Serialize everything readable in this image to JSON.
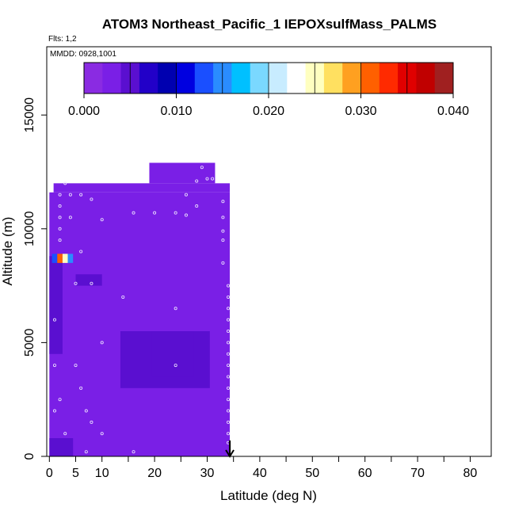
{
  "chart_data": {
    "type": "heatmap",
    "title": "ATOM3 Northeast_Pacific_1 IEPOXsulfMass_PALMS",
    "flights_label": "Flts: 1,2",
    "date_label": "MMDD: 0928,1001",
    "xlabel": "Latitude (deg N)",
    "ylabel": "Altitude (m)",
    "xlim": [
      -0.5,
      84
    ],
    "ylim": [
      0,
      18000
    ],
    "x_ticks": [
      0,
      5,
      10,
      20,
      30,
      40,
      50,
      60,
      70,
      80
    ],
    "y_ticks": [
      0,
      5000,
      10000,
      15000
    ],
    "colorbar": {
      "range": [
        0,
        0.04
      ],
      "tick_values": [
        0,
        0.01,
        0.02,
        0.03,
        0.04
      ],
      "tick_labels": [
        "0.000",
        "0.010",
        "0.020",
        "0.030",
        "0.040"
      ],
      "colors": [
        "#8a2be2",
        "#7a1fe6",
        "#5a0fd0",
        "#2200c8",
        "#0000b0",
        "#0000e0",
        "#1a4fff",
        "#2a8cff",
        "#00c0ff",
        "#7ad8ff",
        "#c8ecff",
        "#ffffff",
        "#ffffc0",
        "#ffe060",
        "#ffa020",
        "#ff6000",
        "#ff2a00",
        "#e00000",
        "#c00000",
        "#a02020"
      ]
    },
    "cells": [
      {
        "x0": 0,
        "x1": 34.3,
        "y0": 0,
        "y1": 11600,
        "value": 0.002
      },
      {
        "x0": 0.8,
        "x1": 34.3,
        "y0": 11600,
        "y1": 12000,
        "value": 0.002
      },
      {
        "x0": 19,
        "x1": 31.5,
        "y0": 12000,
        "y1": 12900,
        "value": 0.002
      },
      {
        "x0": 0,
        "x1": 4.5,
        "y0": 0,
        "y1": 800,
        "value": 0.004
      },
      {
        "x0": 13.5,
        "x1": 30.5,
        "y0": 3000,
        "y1": 5500,
        "value": 0.004
      },
      {
        "x0": 19.5,
        "x1": 27.5,
        "y0": 3500,
        "y1": 5500,
        "value": 0.005
      },
      {
        "x0": 0,
        "x1": 2.5,
        "y0": 4500,
        "y1": 8800,
        "value": 0.004
      },
      {
        "x0": 5,
        "x1": 10,
        "y0": 7500,
        "y1": 8000,
        "value": 0.004
      },
      {
        "x0": 0.5,
        "x1": 1.5,
        "y0": 8500,
        "y1": 8900,
        "value": 0.012
      },
      {
        "x0": 1.5,
        "x1": 2.5,
        "y0": 8500,
        "y1": 8900,
        "value": 0.03
      },
      {
        "x0": 2.5,
        "x1": 3.5,
        "y0": 8500,
        "y1": 8900,
        "value": 0.025
      },
      {
        "x0": 3.5,
        "x1": 4.5,
        "y0": 8500,
        "y1": 8900,
        "value": 0.015
      }
    ],
    "points": [
      [
        2,
        11500
      ],
      [
        2,
        11000
      ],
      [
        2,
        10500
      ],
      [
        2,
        10000
      ],
      [
        2,
        9500
      ],
      [
        3,
        12000
      ],
      [
        4,
        11500
      ],
      [
        6,
        11500
      ],
      [
        4,
        10500
      ],
      [
        6,
        9000
      ],
      [
        8,
        11300
      ],
      [
        10,
        10400
      ],
      [
        16,
        10700
      ],
      [
        20,
        10700
      ],
      [
        24,
        10700
      ],
      [
        26,
        10600
      ],
      [
        26,
        11500
      ],
      [
        28,
        11000
      ],
      [
        28,
        12100
      ],
      [
        29,
        12700
      ],
      [
        30,
        12200
      ],
      [
        31,
        12200
      ],
      [
        33,
        11200
      ],
      [
        33,
        10500
      ],
      [
        33,
        9900
      ],
      [
        33,
        9500
      ],
      [
        33,
        8500
      ],
      [
        34,
        7500
      ],
      [
        34,
        7000
      ],
      [
        34,
        6500
      ],
      [
        34,
        6000
      ],
      [
        34,
        5500
      ],
      [
        34,
        5000
      ],
      [
        34,
        4500
      ],
      [
        34,
        4000
      ],
      [
        34,
        3500
      ],
      [
        34,
        3000
      ],
      [
        34,
        2500
      ],
      [
        34,
        2000
      ],
      [
        34,
        1500
      ],
      [
        34,
        1000
      ],
      [
        34,
        600
      ],
      [
        5,
        7600
      ],
      [
        8,
        7600
      ],
      [
        14,
        7000
      ],
      [
        24,
        6500
      ],
      [
        24,
        4000
      ],
      [
        10,
        5000
      ],
      [
        5,
        4000
      ],
      [
        6,
        3000
      ],
      [
        7,
        2000
      ],
      [
        1,
        2000
      ],
      [
        1,
        4000
      ],
      [
        1,
        6000
      ],
      [
        8,
        1500
      ],
      [
        10,
        1000
      ],
      [
        16,
        200
      ],
      [
        7,
        200
      ],
      [
        3,
        1000
      ],
      [
        2,
        2500
      ]
    ],
    "arrow": {
      "x": 34.3,
      "y_from": 700,
      "y_to": 0
    }
  }
}
